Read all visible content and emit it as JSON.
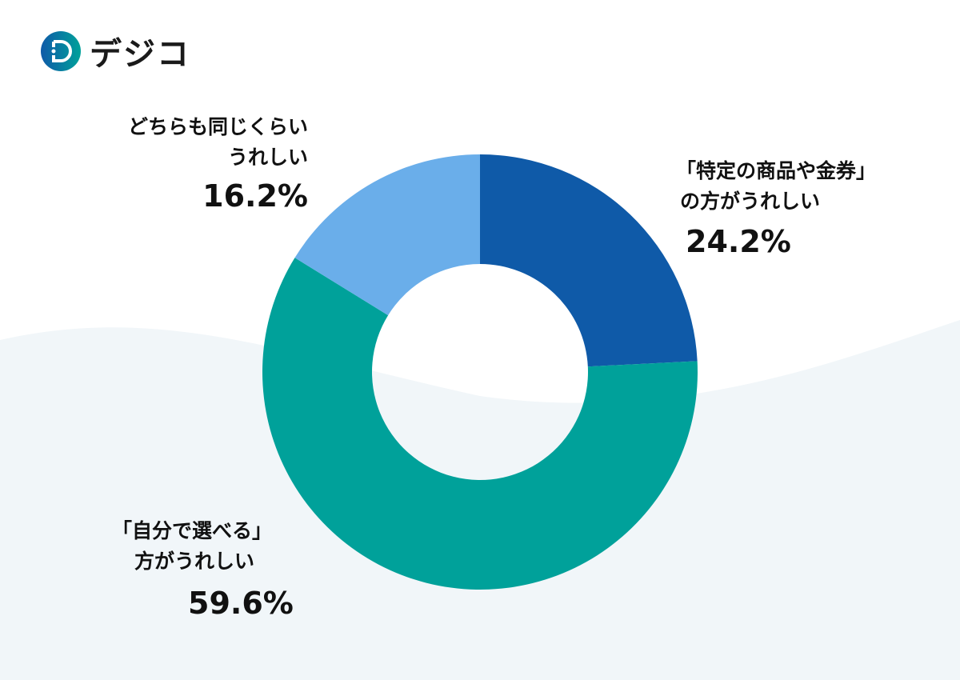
{
  "logo": {
    "text": "デジコ"
  },
  "chart_data": {
    "type": "pie",
    "donut": true,
    "start": "top",
    "direction": "clockwise",
    "slices": [
      {
        "label_lines": [
          "「特定の商品や金券」",
          "の方がうれしい"
        ],
        "value": 24.2,
        "value_label": "24.2%",
        "color": "#0f5aa8"
      },
      {
        "label_lines": [
          "「自分で選べる」",
          "方がうれしい"
        ],
        "value": 59.6,
        "value_label": "59.6%",
        "color": "#00a19a"
      },
      {
        "label_lines": [
          "どちらも同じくらい",
          "うれしい"
        ],
        "value": 16.2,
        "value_label": "16.2%",
        "color": "#6aaeea"
      }
    ]
  }
}
